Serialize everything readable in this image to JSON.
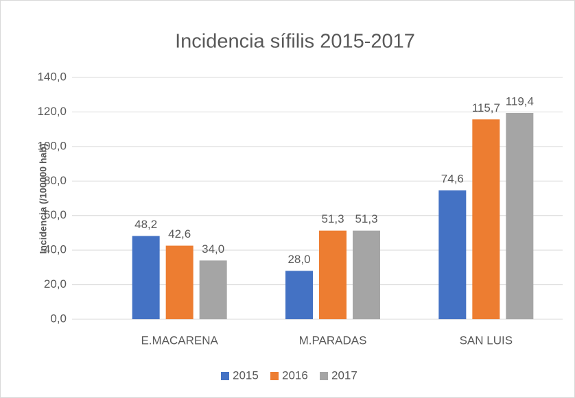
{
  "chart_data": {
    "type": "bar",
    "title": "Incidencia sífilis 2015-2017",
    "y_label": "Incidencia (/100000 hab)",
    "categories": [
      "E.MACARENA",
      "M.PARADAS",
      "SAN LUIS"
    ],
    "series": [
      {
        "name": "2015",
        "color": "#4472c4",
        "values": [
          48.2,
          28.0,
          74.6
        ],
        "value_labels": [
          "48,2",
          "28,0",
          "74,6"
        ]
      },
      {
        "name": "2016",
        "color": "#ed7d31",
        "values": [
          42.6,
          51.3,
          115.7
        ],
        "value_labels": [
          "42,6",
          "51,3",
          "115,7"
        ]
      },
      {
        "name": "2017",
        "color": "#a5a5a5",
        "values": [
          34.0,
          51.3,
          119.4
        ],
        "value_labels": [
          "34,0",
          "51,3",
          "119,4"
        ]
      }
    ],
    "ylim": [
      0,
      140
    ],
    "yticks": [
      {
        "value": 0,
        "label": "0,0"
      },
      {
        "value": 20,
        "label": "20,0"
      },
      {
        "value": 40,
        "label": "40,0"
      },
      {
        "value": 60,
        "label": "60,0"
      },
      {
        "value": 80,
        "label": "80,0"
      },
      {
        "value": 100,
        "label": "100,0"
      },
      {
        "value": 120,
        "label": "120,0"
      },
      {
        "value": 140,
        "label": "140,0"
      }
    ],
    "grid": true,
    "legend": "bottom"
  }
}
